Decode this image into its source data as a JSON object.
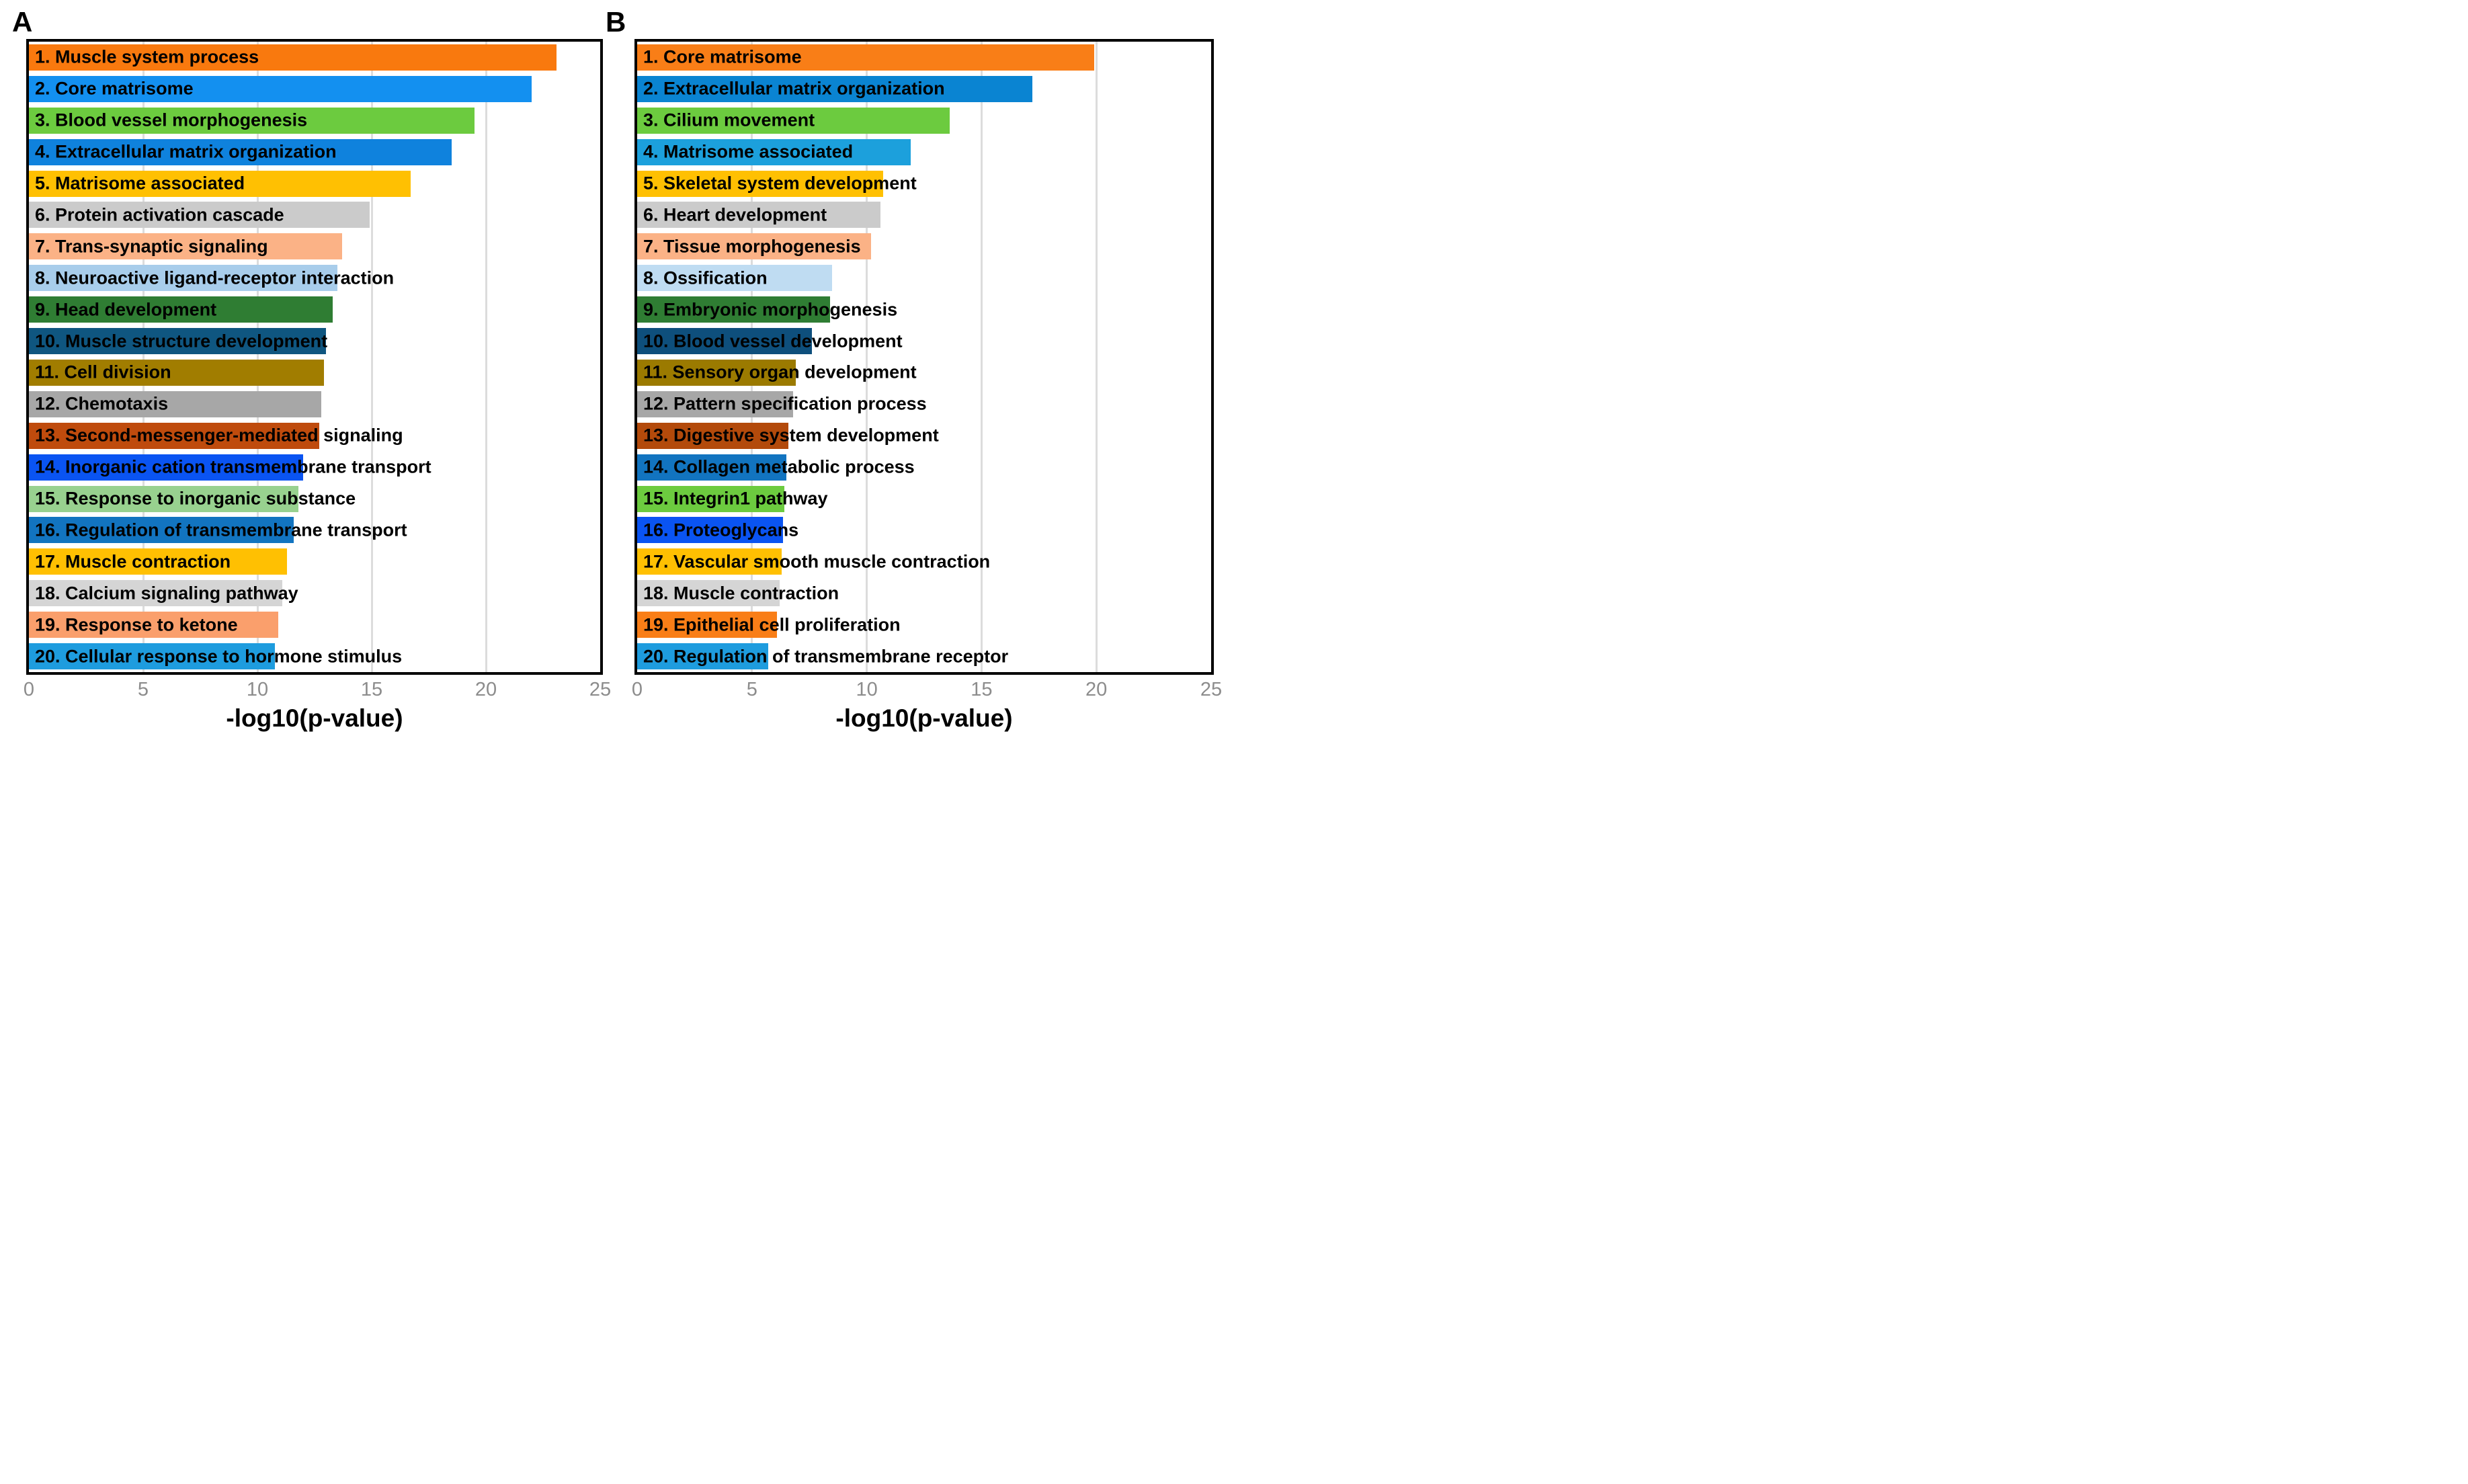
{
  "styles": {
    "grid_color": "#DCDCDC",
    "plot_border_color": "#000000",
    "tick_label_color": "#8C8C8C",
    "bar_label_color": "#000000"
  },
  "chart_data": [
    {
      "type": "bar",
      "orientation": "horizontal",
      "panel_label": "A",
      "xlabel": "-log10(p-value)",
      "xlim": [
        0,
        25
      ],
      "xticks": [
        0,
        5,
        10,
        15,
        20,
        25
      ],
      "grid": "vertical",
      "legend": "none",
      "categories": [
        "1. Muscle system process",
        "2. Core matrisome",
        "3. Blood vessel morphogenesis",
        "4. Extracellular matrix organization",
        "5. Matrisome associated",
        "6. Protein activation cascade",
        "7. Trans-synaptic signaling",
        "8. Neuroactive ligand-receptor interaction",
        "9. Head development",
        "10. Muscle structure development",
        "11. Cell division",
        "12. Chemotaxis",
        "13. Second-messenger-mediated signaling",
        "14. Inorganic cation transmembrane transport",
        "15. Response to inorganic substance",
        "16. Regulation of transmembrane transport",
        "17. Muscle contraction",
        "18. Calcium signaling pathway",
        "19. Response to ketone",
        "20. Cellular response to hormone stimulus"
      ],
      "values": [
        23.1,
        22.0,
        19.5,
        18.5,
        16.7,
        14.9,
        13.7,
        13.5,
        13.3,
        13.0,
        12.9,
        12.8,
        12.7,
        12.0,
        11.8,
        11.6,
        11.3,
        11.1,
        10.9,
        10.75
      ],
      "bar_colors": [
        "#F9790E",
        "#1390F0",
        "#6CCB3F",
        "#0F82DD",
        "#FFC002",
        "#CBCBCB",
        "#FBB286",
        "#A8CDEB",
        "#2F7D33",
        "#0F5680",
        "#A17D00",
        "#A7A7A7",
        "#BF4B0D",
        "#0A54F2",
        "#98D18F",
        "#1274C0",
        "#FFC002",
        "#D5D5D5",
        "#FA9F6C",
        "#1E9CDE"
      ]
    },
    {
      "type": "bar",
      "orientation": "horizontal",
      "panel_label": "B",
      "xlabel": "-log10(p-value)",
      "xlim": [
        0,
        25
      ],
      "xticks": [
        0,
        5,
        10,
        15,
        20,
        25
      ],
      "grid": "vertical",
      "legend": "none",
      "categories": [
        "1. Core matrisome",
        "2. Extracellular matrix organization",
        "3. Cilium movement",
        "4. Matrisome associated",
        "5. Skeletal system development",
        "6. Heart development",
        "7. Tissue morphogenesis",
        "8. Ossification",
        "9. Embryonic morphogenesis",
        "10. Blood vessel development",
        "11. Sensory organ development",
        "12. Pattern specification process",
        "13. Digestive system development",
        "14. Collagen metabolic process",
        "15. Integrin1 pathway",
        "16. Proteoglycans",
        "17. Vascular smooth muscle contraction",
        "18. Muscle contraction",
        "19. Epithelial cell proliferation",
        "20. Regulation of transmembrane receptor"
      ],
      "values": [
        19.9,
        17.2,
        13.6,
        11.9,
        10.7,
        10.6,
        10.2,
        8.5,
        8.4,
        7.6,
        6.9,
        6.8,
        6.6,
        6.5,
        6.4,
        6.35,
        6.3,
        6.2,
        6.1,
        5.7
      ],
      "bar_colors": [
        "#F97E17",
        "#0A84D2",
        "#6CCB3F",
        "#1CA0DC",
        "#FFC002",
        "#CBCBCB",
        "#FBB286",
        "#BFDCF2",
        "#2F7D33",
        "#0E4F7C",
        "#9B7A00",
        "#A7A7A7",
        "#B34A0B",
        "#1274C0",
        "#6CCB3F",
        "#0A54F2",
        "#FFC002",
        "#D5D5D5",
        "#F97E17",
        "#1E9CDE"
      ]
    }
  ]
}
